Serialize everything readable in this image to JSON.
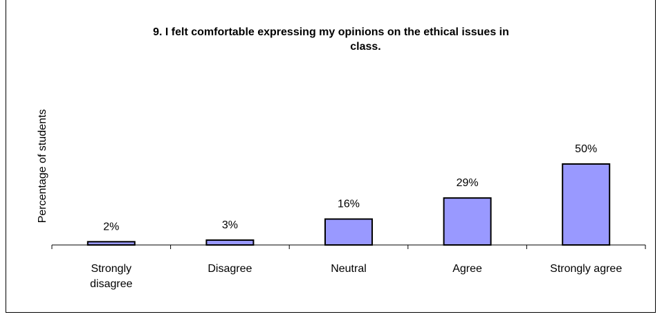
{
  "chart_data": {
    "type": "bar",
    "title": "9. I felt comfortable expressing my opinions on the ethical issues in class.",
    "title_lines": [
      "9. I felt comfortable expressing my opinions on the ethical issues in",
      "class."
    ],
    "ylabel": "Percentage of students",
    "xlabel": "",
    "categories": [
      "Strongly disagree",
      "Disagree",
      "Neutral",
      "Agree",
      "Strongly agree"
    ],
    "category_lines": [
      [
        "Strongly",
        "disagree"
      ],
      [
        "Disagree"
      ],
      [
        "Neutral"
      ],
      [
        "Agree"
      ],
      [
        "Strongly agree"
      ]
    ],
    "values": [
      2,
      3,
      16,
      29,
      50
    ],
    "data_labels": [
      "2%",
      "3%",
      "16%",
      "29%",
      "50%"
    ],
    "ylim": [
      0,
      100
    ],
    "grid": false,
    "legend": "none",
    "bar_color": "#9999ff",
    "bar_edge_color": "#000000"
  }
}
